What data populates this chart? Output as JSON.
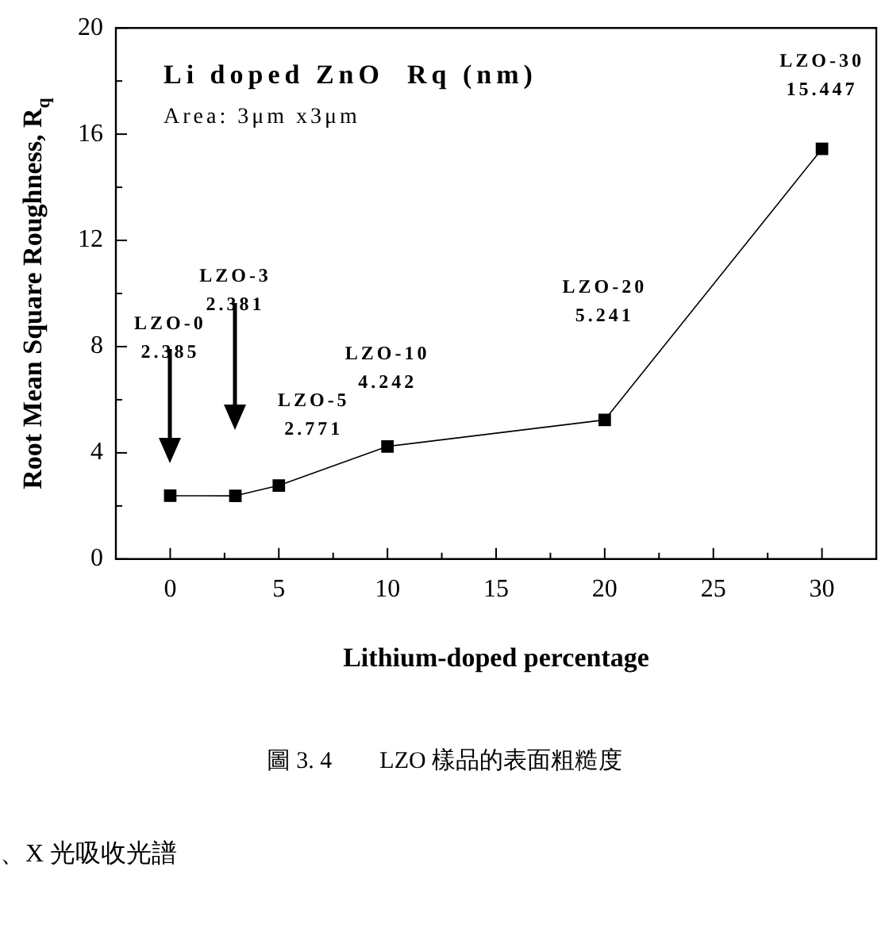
{
  "chart_data": {
    "type": "line",
    "title": "Li doped ZnO  Rq (nm)",
    "subtitle": "Area: 3μm x3μm",
    "xlabel": "Lithium-doped percentage",
    "ylabel": "Root Mean Square Roughness, R$_{q}$",
    "x": [
      0,
      3,
      5,
      10,
      20,
      30
    ],
    "series": [
      {
        "color": "#000000",
        "values": [
          2.385,
          2.381,
          2.771,
          4.242,
          5.241,
          15.447
        ]
      }
    ],
    "xlim": [
      -2.5,
      32.5
    ],
    "xticks": [
      0,
      5,
      10,
      15,
      20,
      25,
      30
    ],
    "ylim": [
      0,
      20
    ],
    "yticks": [
      0,
      4,
      8,
      12,
      16,
      20
    ],
    "grid": false,
    "legend": false,
    "marker": "square",
    "line_style": "solid",
    "annotations": [
      "LZO-0\n2.385",
      "LZO-3\n2.381",
      "LZO-5\n2.771",
      "LZO-10\n4.242",
      "LZO-20\n5.241",
      "LZO-30\n15.447",
      "圖 3. 4　　LZO 樣品的表面粗糙度",
      "、X 光吸收光譜"
    ]
  }
}
